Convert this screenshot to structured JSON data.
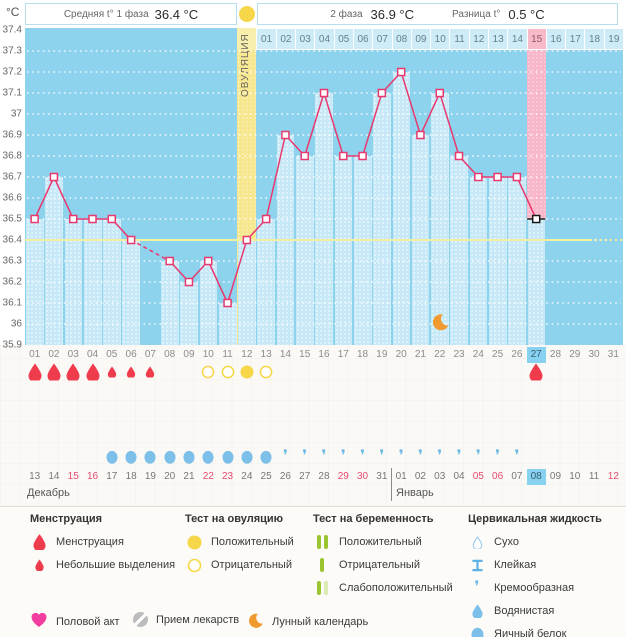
{
  "header": {
    "unit_label": "°C",
    "phase1_label": "Средняя t° 1 фаза",
    "phase1_value": "36.4 °C",
    "phase2_label": "2 фаза",
    "phase2_value": "36.9 °C",
    "diff_label": "Разница t°",
    "diff_value": "0.5 °C"
  },
  "chart_data": {
    "type": "line",
    "ylabel": "°C",
    "ylim": [
      35.9,
      37.4
    ],
    "ytick_step": 0.1,
    "grid": "dotted-white",
    "x_days": [
      "01",
      "02",
      "03",
      "04",
      "05",
      "06",
      "07",
      "08",
      "09",
      "10",
      "11",
      "12",
      "13",
      "14",
      "15",
      "16",
      "17",
      "18",
      "19",
      "20",
      "21",
      "22",
      "23",
      "24",
      "25",
      "26",
      "27",
      "28",
      "29",
      "30",
      "31"
    ],
    "series": [
      {
        "name": "basal-temperature",
        "values": [
          36.5,
          36.7,
          36.5,
          36.5,
          36.5,
          36.4,
          null,
          36.3,
          36.2,
          36.3,
          36.1,
          36.4,
          36.5,
          36.9,
          36.8,
          37.1,
          36.8,
          36.8,
          37.1,
          37.2,
          36.9,
          37.1,
          36.8,
          36.7,
          36.7,
          36.7,
          36.5,
          null,
          null,
          null,
          null
        ]
      }
    ],
    "coverline": 36.4,
    "ovulation_day": 12,
    "ovulation_label": "ОВУЛЯЦИЯ",
    "selected_day": 27,
    "selected_value": 36.5,
    "dpo_start_cycle_day": 13,
    "dpo_labels": [
      "01",
      "02",
      "03",
      "04",
      "05",
      "06",
      "07",
      "08",
      "09",
      "10",
      "11",
      "12",
      "13",
      "14",
      "15",
      "16",
      "17",
      "18",
      "19"
    ],
    "dpo_highlight_label": "15",
    "moon_day": 22,
    "line_color": "#e8396f",
    "coverline_color": "#f3ef9e"
  },
  "day_row": {
    "labels": [
      "01",
      "02",
      "03",
      "04",
      "05",
      "06",
      "07",
      "08",
      "09",
      "10",
      "11",
      "12",
      "13",
      "14",
      "15",
      "16",
      "17",
      "18",
      "19",
      "20",
      "21",
      "22",
      "23",
      "24",
      "25",
      "26",
      "27",
      "28",
      "29",
      "30",
      "31"
    ],
    "selected": "27"
  },
  "markers": {
    "menstruation_heavy_days": [
      1,
      2,
      3,
      4,
      27
    ],
    "menstruation_light_days": [
      5,
      6,
      7
    ],
    "ovulation_test_negative_days": [
      10,
      11,
      13
    ],
    "ovulation_test_positive_days": [
      12
    ],
    "cervical_eggwhite_days": [
      5,
      6,
      7,
      8,
      9,
      10,
      11,
      12,
      13
    ],
    "cervical_creamy_days": [
      14,
      15,
      16,
      17,
      18,
      19,
      20,
      21,
      22,
      23,
      24,
      25,
      26
    ]
  },
  "calendar": {
    "month1": "Декабрь",
    "month2": "Январь",
    "selected_date": "08",
    "december_dates": [
      {
        "label": "13",
        "weekend": false
      },
      {
        "label": "14",
        "weekend": false
      },
      {
        "label": "15",
        "weekend": true
      },
      {
        "label": "16",
        "weekend": true
      },
      {
        "label": "17",
        "weekend": false
      },
      {
        "label": "18",
        "weekend": false
      },
      {
        "label": "19",
        "weekend": false
      },
      {
        "label": "20",
        "weekend": false
      },
      {
        "label": "21",
        "weekend": false
      },
      {
        "label": "22",
        "weekend": true
      },
      {
        "label": "23",
        "weekend": true
      },
      {
        "label": "24",
        "weekend": false
      },
      {
        "label": "25",
        "weekend": false
      },
      {
        "label": "26",
        "weekend": false
      },
      {
        "label": "27",
        "weekend": false
      },
      {
        "label": "28",
        "weekend": false
      },
      {
        "label": "29",
        "weekend": true
      },
      {
        "label": "30",
        "weekend": true
      },
      {
        "label": "31",
        "weekend": false
      }
    ],
    "january_dates": [
      {
        "label": "01",
        "weekend": false
      },
      {
        "label": "02",
        "weekend": false
      },
      {
        "label": "03",
        "weekend": false
      },
      {
        "label": "04",
        "weekend": false
      },
      {
        "label": "05",
        "weekend": true
      },
      {
        "label": "06",
        "weekend": true
      },
      {
        "label": "07",
        "weekend": false
      },
      {
        "label": "08",
        "weekend": false
      },
      {
        "label": "09",
        "weekend": false
      },
      {
        "label": "10",
        "weekend": false
      },
      {
        "label": "11",
        "weekend": false
      },
      {
        "label": "12",
        "weekend": true
      }
    ]
  },
  "legend": {
    "menstruation": {
      "title": "Менструация",
      "items": [
        {
          "label": "Менструация",
          "icon": "drop-large"
        },
        {
          "label": "Небольшие выделения",
          "icon": "drop-small"
        }
      ]
    },
    "ovulation_test": {
      "title": "Тест на овуляцию",
      "items": [
        {
          "label": "Положительный",
          "icon": "circle-filled"
        },
        {
          "label": "Отрицательный",
          "icon": "circle-outline"
        }
      ]
    },
    "pregnancy_test": {
      "title": "Тест на беременность",
      "items": [
        {
          "label": "Положительный",
          "icon": "two-green-bars"
        },
        {
          "label": "Отрицательный",
          "icon": "one-green-bar"
        },
        {
          "label": "Слабоположительный",
          "icon": "green-bar-plus-faint-bar"
        }
      ]
    },
    "cervical_fluid": {
      "title": "Цервикальная жидкость",
      "items": [
        {
          "label": "Сухо",
          "icon": "drop-outline"
        },
        {
          "label": "Клейкая",
          "icon": "ibeam"
        },
        {
          "label": "Кремообразная",
          "icon": "comma"
        },
        {
          "label": "Водянистая",
          "icon": "drop-filled"
        },
        {
          "label": "Яичный белок",
          "icon": "oval-filled"
        }
      ]
    },
    "extra": [
      {
        "label": "Половой акт",
        "icon": "heart"
      },
      {
        "label": "Прием лекарств",
        "icon": "pill"
      },
      {
        "label": "Лунный календарь",
        "icon": "moon"
      }
    ]
  },
  "colors": {
    "chart_background": "#8ed3ee",
    "bar_fill": "#c7e9f7",
    "ovulation_column": "#f6e78c",
    "period_column_pink": "#f8b7c8",
    "temperature_line": "#e8396f",
    "coverline": "#f3ef9e",
    "menstruation_red": "#ee3c4c",
    "ovulation_test_yellow": "#f6d74a",
    "cervical_blue": "#7cc0ea",
    "moon_orange": "#f09a2f",
    "heart_pink": "#f23d9e",
    "pregnancy_green": "#9bc52e",
    "selected_day_blue": "#86d2f0",
    "weekend_red": "#e84a6f"
  }
}
